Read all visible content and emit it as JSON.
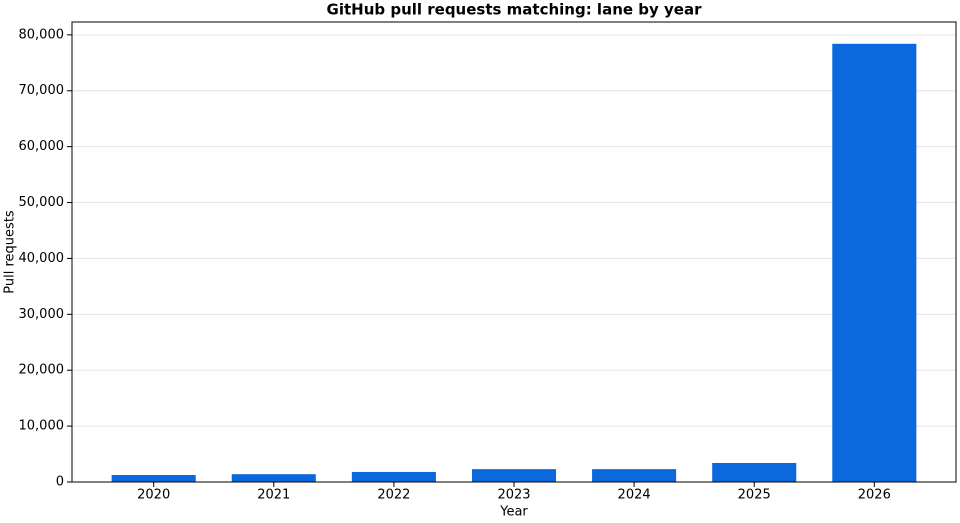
{
  "chart_data": {
    "type": "bar",
    "title": "GitHub pull requests matching: lane by year",
    "x_label": "Year",
    "y_label": "Pull requests",
    "categories": [
      "2020",
      "2021",
      "2022",
      "2023",
      "2024",
      "2025",
      "2026"
    ],
    "values": [
      1250,
      1400,
      1800,
      2300,
      2300,
      3400,
      78400
    ],
    "color": "#0b69dd",
    "ylim": [
      0,
      82300
    ],
    "yticks": [
      0,
      {
        "value": 10000,
        "label": "10,000"
      },
      {
        "value": 20000,
        "label": "20,000"
      },
      {
        "value": 30000,
        "label": "30,000"
      },
      {
        "value": 40000,
        "label": "40,000"
      },
      {
        "value": 50000,
        "label": "50,000"
      },
      {
        "value": 60000,
        "label": "60,000"
      },
      {
        "value": 70000,
        "label": "70,000"
      },
      {
        "value": 80000,
        "label": "80,000"
      }
    ],
    "grid": true
  }
}
